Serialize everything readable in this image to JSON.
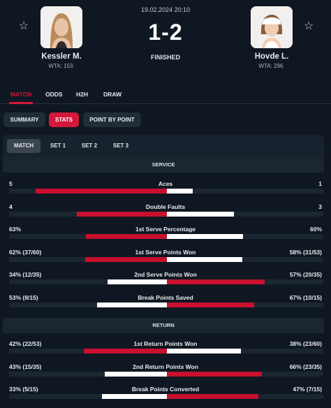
{
  "match": {
    "datetime": "19.02.2024 20:10",
    "score": "1-2",
    "status": "FINISHED",
    "home": {
      "name": "Kessler M.",
      "rank": "WTA: 153."
    },
    "away": {
      "name": "Hovde L.",
      "rank": "WTA: 296."
    }
  },
  "main_tabs": [
    "MATCH",
    "ODDS",
    "H2H",
    "DRAW"
  ],
  "sub_tabs": [
    "SUMMARY",
    "STATS",
    "POINT BY POINT"
  ],
  "set_tabs": [
    "MATCH",
    "SET 1",
    "SET 2",
    "SET 3"
  ],
  "colors": {
    "accent": "#d5173c",
    "bar_red": "#c8102e",
    "bar_white": "#ffffff",
    "background": "#0f1822"
  },
  "sections": {
    "service": {
      "title": "SERVICE",
      "rows": [
        {
          "label": "Aces",
          "home": "5",
          "away": "1",
          "home_share": 0.833,
          "away_share": 0.167
        },
        {
          "label": "Double Faults",
          "home": "4",
          "away": "3",
          "home_share": 0.571,
          "away_share": 0.429
        },
        {
          "label": "1st Serve Percentage",
          "home": "63%",
          "away": "60%",
          "home_share": 0.512,
          "away_share": 0.488
        },
        {
          "label": "1st Serve Points Won",
          "home": "62% (37/60)",
          "away": "58% (31/53)",
          "home_share": 0.517,
          "away_share": 0.483
        },
        {
          "label": "2nd Serve Points Won",
          "home": "34% (12/35)",
          "away": "57% (20/35)",
          "home_share": 0.374,
          "away_share": 0.626
        },
        {
          "label": "Break Points Saved",
          "home": "53% (8/15)",
          "away": "67% (10/15)",
          "home_share": 0.442,
          "away_share": 0.558
        }
      ]
    },
    "return": {
      "title": "RETURN",
      "rows": [
        {
          "label": "1st Return Points Won",
          "home": "42% (22/53)",
          "away": "38% (23/60)",
          "home_share": 0.525,
          "away_share": 0.475
        },
        {
          "label": "2nd Return Points Won",
          "home": "43% (15/35)",
          "away": "66% (23/35)",
          "home_share": 0.394,
          "away_share": 0.606
        },
        {
          "label": "Break Points Converted",
          "home": "33% (5/15)",
          "away": "47% (7/15)",
          "home_share": 0.413,
          "away_share": 0.587
        }
      ]
    }
  }
}
